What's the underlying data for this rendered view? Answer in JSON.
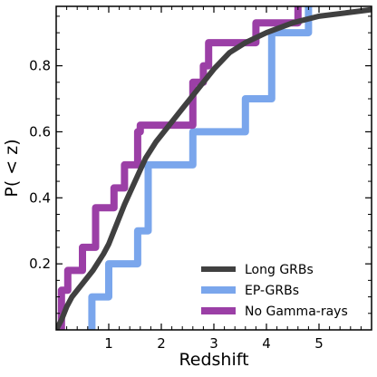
{
  "chart_data": {
    "type": "line",
    "xlabel": "Redshift",
    "ylabel": "P( < z)",
    "xlim": [
      0,
      6.0
    ],
    "ylim": [
      0,
      0.98
    ],
    "xticks": [
      1,
      2,
      3,
      4,
      5
    ],
    "yticks": [
      0.2,
      0.4,
      0.6,
      0.8
    ],
    "legend_position": "bottom-right",
    "grid": false,
    "series": [
      {
        "name": "Long GRBs",
        "color": "#404040",
        "style": "smooth",
        "x": [
          0.0,
          0.1,
          0.2,
          0.3,
          0.5,
          0.7,
          0.9,
          1.0,
          1.1,
          1.3,
          1.5,
          1.7,
          1.9,
          2.0,
          2.2,
          2.4,
          2.6,
          2.8,
          3.0,
          3.3,
          3.6,
          4.0,
          4.5,
          5.0,
          5.5,
          6.0
        ],
        "y": [
          0.0,
          0.03,
          0.07,
          0.1,
          0.14,
          0.18,
          0.23,
          0.26,
          0.3,
          0.38,
          0.45,
          0.52,
          0.57,
          0.59,
          0.63,
          0.67,
          0.71,
          0.75,
          0.79,
          0.84,
          0.87,
          0.9,
          0.93,
          0.95,
          0.96,
          0.97
        ]
      },
      {
        "name": "EP-GRBs",
        "color": "#7aa6ec",
        "style": "step",
        "x": [
          0.68,
          0.68,
          1.0,
          1.0,
          1.55,
          1.55,
          1.75,
          1.75,
          2.6,
          2.6,
          3.6,
          3.6,
          4.1,
          4.1,
          4.8,
          4.8
        ],
        "y": [
          0.0,
          0.1,
          0.1,
          0.2,
          0.2,
          0.3,
          0.3,
          0.5,
          0.5,
          0.6,
          0.6,
          0.7,
          0.7,
          0.9,
          0.9,
          0.98
        ]
      },
      {
        "name": "No Gamma-rays",
        "color": "#9b3fa6",
        "style": "step",
        "x": [
          0.1,
          0.1,
          0.22,
          0.22,
          0.5,
          0.5,
          0.75,
          0.75,
          1.1,
          1.1,
          1.3,
          1.3,
          1.55,
          1.55,
          1.6,
          1.6,
          2.6,
          2.6,
          2.8,
          2.8,
          2.9,
          2.9,
          3.8,
          3.8,
          4.6,
          4.6
        ],
        "y": [
          0.0,
          0.12,
          0.12,
          0.18,
          0.18,
          0.25,
          0.25,
          0.37,
          0.37,
          0.43,
          0.43,
          0.5,
          0.5,
          0.6,
          0.6,
          0.62,
          0.62,
          0.75,
          0.75,
          0.8,
          0.8,
          0.87,
          0.87,
          0.93,
          0.93,
          0.98
        ]
      }
    ]
  }
}
